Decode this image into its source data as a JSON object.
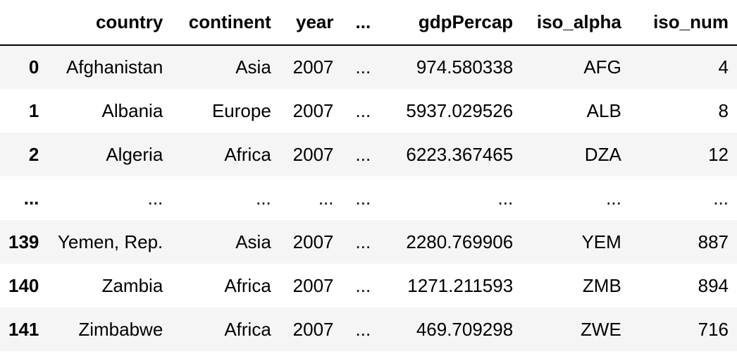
{
  "table": {
    "columns": [
      "",
      "country",
      "continent",
      "year",
      "...",
      "gdpPercap",
      "iso_alpha",
      "iso_num"
    ],
    "rows": [
      {
        "index": "0",
        "country": "Afghanistan",
        "continent": "Asia",
        "year": "2007",
        "ellipsis": "...",
        "gdpPercap": "974.580338",
        "iso_alpha": "AFG",
        "iso_num": "4"
      },
      {
        "index": "1",
        "country": "Albania",
        "continent": "Europe",
        "year": "2007",
        "ellipsis": "...",
        "gdpPercap": "5937.029526",
        "iso_alpha": "ALB",
        "iso_num": "8"
      },
      {
        "index": "2",
        "country": "Algeria",
        "continent": "Africa",
        "year": "2007",
        "ellipsis": "...",
        "gdpPercap": "6223.367465",
        "iso_alpha": "DZA",
        "iso_num": "12"
      },
      {
        "index": "...",
        "country": "...",
        "continent": "...",
        "year": "...",
        "ellipsis": "...",
        "gdpPercap": "...",
        "iso_alpha": "...",
        "iso_num": "..."
      },
      {
        "index": "139",
        "country": "Yemen, Rep.",
        "continent": "Asia",
        "year": "2007",
        "ellipsis": "...",
        "gdpPercap": "2280.769906",
        "iso_alpha": "YEM",
        "iso_num": "887"
      },
      {
        "index": "140",
        "country": "Zambia",
        "continent": "Africa",
        "year": "2007",
        "ellipsis": "...",
        "gdpPercap": "1271.211593",
        "iso_alpha": "ZMB",
        "iso_num": "894"
      },
      {
        "index": "141",
        "country": "Zimbabwe",
        "continent": "Africa",
        "year": "2007",
        "ellipsis": "...",
        "gdpPercap": "469.709298",
        "iso_alpha": "ZWE",
        "iso_num": "716"
      }
    ]
  },
  "colors": {
    "striped_row": "#f5f5f5",
    "plain_row": "#ffffff",
    "header_rule": "#000000"
  }
}
